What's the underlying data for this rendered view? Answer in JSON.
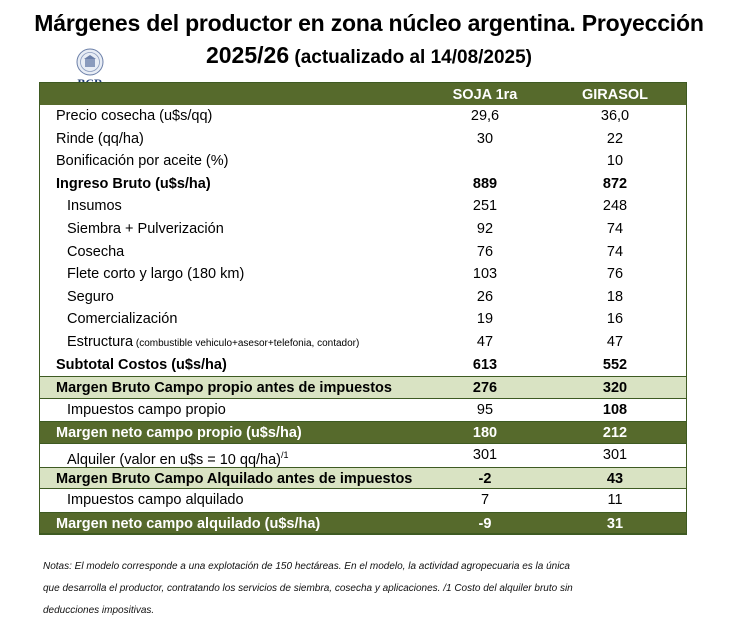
{
  "title": {
    "line1": "Márgenes  del productor en zona núcleo argentina. Proyección",
    "line2_main": "2025/26",
    "line2_sub": " (actualizado al 14/08/2025)"
  },
  "logo": {
    "text": "BCR",
    "icon": "seal-icon"
  },
  "table": {
    "headers": {
      "col1": "SOJA 1ra",
      "col2": "GIRASOL"
    },
    "rows": {
      "precio": {
        "label": "Precio cosecha (u$s/qq)",
        "v1": "29,6",
        "v2": "36,0"
      },
      "rinde": {
        "label": "Rinde (qq/ha)",
        "v1": "30",
        "v2": "22"
      },
      "bonificacion": {
        "label": "Bonificación por aceite (%)",
        "v1": "",
        "v2": "10"
      },
      "ingreso": {
        "label": "Ingreso Bruto (u$s/ha)",
        "v1": "889",
        "v2": "872"
      },
      "insumos": {
        "label": "Insumos",
        "v1": "251",
        "v2": "248"
      },
      "siembra": {
        "label": "Siembra + Pulverización",
        "v1": "92",
        "v2": "74"
      },
      "cosecha": {
        "label": "Cosecha",
        "v1": "76",
        "v2": "74"
      },
      "flete": {
        "label": "Flete corto y largo (180 km)",
        "v1": "103",
        "v2": "76"
      },
      "seguro": {
        "label": "Seguro",
        "v1": "26",
        "v2": "18"
      },
      "comercializacion": {
        "label": "Comercialización",
        "v1": "19",
        "v2": "16"
      },
      "estructura": {
        "label": "Estructura",
        "label_small": " (combustible vehiculo+asesor+telefonia, contador)",
        "v1": "47",
        "v2": "47"
      },
      "subtotal": {
        "label": "Subtotal Costos (u$s/ha)",
        "v1": "613",
        "v2": "552"
      },
      "margen_bruto_propio": {
        "label": "Margen Bruto Campo propio antes de impuestos",
        "v1": "276",
        "v2": "320"
      },
      "impuestos_propio": {
        "label": "Impuestos  campo propio",
        "v1": "95",
        "v2": "108"
      },
      "margen_neto_propio": {
        "label": "Margen neto campo propio (u$s/ha)",
        "v1": "180",
        "v2": "212"
      },
      "alquiler": {
        "label": "Alquiler (valor en u$s = 10 qq/ha)",
        "sup": "/1",
        "v1": "301",
        "v2": "301"
      },
      "margen_bruto_alquilado": {
        "label": "Margen Bruto Campo Alquilado antes de impuestos",
        "v1": "-2",
        "v2": "43"
      },
      "impuestos_alquilado": {
        "label": "Impuestos campo alquilado",
        "v1": "7",
        "v2": "11"
      },
      "margen_neto_alquilado": {
        "label": "Margen neto campo alquilado (u$s/ha)",
        "v1": "-9",
        "v2": "31"
      }
    }
  },
  "notes": {
    "line1": "Notas: El modelo corresponde a una explotación de 150 hectáreas. En el modelo, la actividad agropecuaria es la única",
    "line2": "que desarrolla el productor, contratando los servicios de siembra, cosecha y aplicaciones.  /1  Costo del alquiler bruto sin",
    "line3": "deducciones impositivas."
  },
  "colors": {
    "dark_green": "#566a2c",
    "light_green": "#d9e3c3",
    "border": "#3e5a22"
  }
}
